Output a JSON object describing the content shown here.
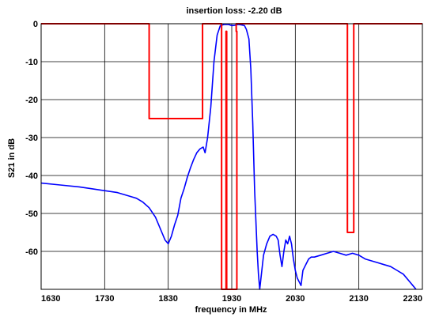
{
  "chart_data": {
    "type": "line",
    "title": "insertion loss: -2.20  dB",
    "xlabel": "frequency in MHz",
    "ylabel": "S21 in dB",
    "xlim": [
      1630,
      2230
    ],
    "ylim": [
      -70,
      0
    ],
    "grid": true,
    "x_ticks": [
      1630,
      1730,
      1830,
      1930,
      2030,
      2130,
      2230
    ],
    "x_tick_labels": [
      "1630",
      "1730",
      "1830",
      "1930",
      "2030",
      "2130",
      "2230"
    ],
    "y_ticks": [
      0,
      -10,
      -20,
      -30,
      -40,
      -50,
      -60
    ],
    "y_tick_labels": [
      "0",
      "-10",
      "-20",
      "-30",
      "-40",
      "-50",
      "-60"
    ],
    "colors": {
      "response": "#0000ff",
      "mask": "#ff0000",
      "grid": "#000000"
    },
    "series": [
      {
        "role": "measured-response",
        "x": [
          1630,
          1660,
          1690,
          1710,
          1730,
          1750,
          1760,
          1770,
          1780,
          1790,
          1800,
          1810,
          1820,
          1825,
          1830,
          1835,
          1840,
          1845,
          1850,
          1855,
          1860,
          1865,
          1870,
          1875,
          1880,
          1885,
          1888,
          1892,
          1897,
          1902,
          1907,
          1912,
          1918,
          1925,
          1930,
          1935,
          1940,
          1945,
          1950,
          1953,
          1957,
          1960,
          1963,
          1966,
          1970,
          1972,
          1974,
          1976,
          1978,
          1980,
          1985,
          1990,
          1995,
          2000,
          2003,
          2006,
          2009,
          2012,
          2015,
          2018,
          2021,
          2024,
          2027,
          2030,
          2033,
          2036,
          2039,
          2042,
          2045,
          2048,
          2051,
          2055,
          2060,
          2070,
          2080,
          2090,
          2100,
          2110,
          2120,
          2130,
          2140,
          2150,
          2160,
          2170,
          2180,
          2190,
          2200,
          2210,
          2215,
          2220
        ],
        "y": [
          -42,
          -42.5,
          -43,
          -43.5,
          -44,
          -44.5,
          -45,
          -45.5,
          -46,
          -47,
          -48.5,
          -51,
          -55,
          -57,
          -58,
          -56,
          -53,
          -50.5,
          -46,
          -43.5,
          -40.5,
          -38,
          -35.8,
          -34,
          -33,
          -32.5,
          -34,
          -30,
          -22,
          -10,
          -3,
          -0.5,
          -0.2,
          -0.2,
          -0.5,
          -0.4,
          -0.2,
          -0.3,
          -0.5,
          -1.5,
          -4,
          -12,
          -26,
          -44,
          -60,
          -66,
          -70,
          -67,
          -64,
          -61,
          -58,
          -56,
          -55.5,
          -56,
          -57,
          -61,
          -64,
          -60,
          -57,
          -58,
          -56,
          -58,
          -62,
          -65,
          -67,
          -68,
          -69,
          -65,
          -64,
          -63,
          -62,
          -61.5,
          -61.5,
          -61,
          -60.5,
          -60,
          -60.5,
          -61,
          -60.5,
          -61,
          -62,
          -62.5,
          -63,
          -63.5,
          -64,
          -65,
          -66,
          -68,
          -69,
          -70
        ]
      },
      {
        "role": "upper-mask",
        "x": [
          1630,
          1800,
          1800,
          1884,
          1884,
          1914,
          1914,
          1922,
          1922,
          1921,
          1921,
          1938,
          1938,
          1937,
          1937,
          2112,
          2112,
          2122,
          2122,
          2230
        ],
        "y": [
          0,
          0,
          -25,
          -25,
          0,
          0,
          -70,
          -70,
          -2,
          -2,
          -70,
          -70,
          -2,
          -2,
          0,
          0,
          -55,
          -55,
          0,
          0
        ]
      }
    ]
  }
}
